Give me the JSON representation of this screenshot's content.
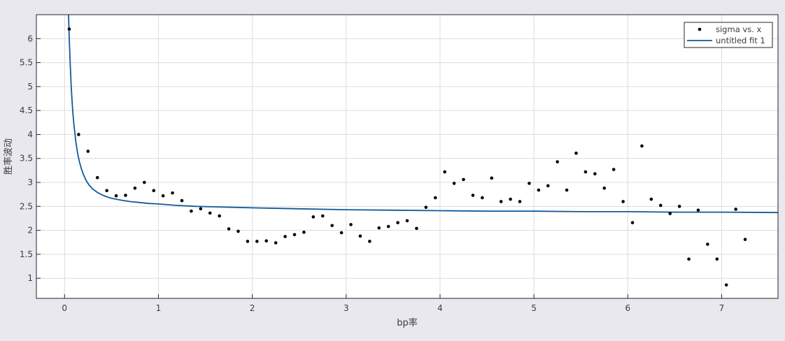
{
  "chart_data": {
    "type": "scatter",
    "xlabel": "bp率",
    "ylabel": "胜率波动",
    "xlim": [
      -0.3,
      7.6
    ],
    "ylim": [
      0.58,
      6.5
    ],
    "xticks": [
      0,
      1,
      2,
      3,
      4,
      5,
      6,
      7
    ],
    "yticks": [
      1,
      1.5,
      2,
      2.5,
      3,
      3.5,
      4,
      4.5,
      5,
      5.5,
      6
    ],
    "grid": true,
    "legend_position": "top-right",
    "series": [
      {
        "name": "sigma vs. x",
        "kind": "points",
        "color": "#000000",
        "x": [
          0.05,
          0.15,
          0.25,
          0.35,
          0.45,
          0.55,
          0.65,
          0.75,
          0.85,
          0.95,
          1.05,
          1.15,
          1.25,
          1.35,
          1.45,
          1.55,
          1.65,
          1.75,
          1.85,
          1.95,
          2.05,
          2.15,
          2.25,
          2.35,
          2.45,
          2.55,
          2.65,
          2.75,
          2.85,
          2.95,
          3.05,
          3.15,
          3.25,
          3.35,
          3.45,
          3.55,
          3.65,
          3.75,
          3.85,
          3.95,
          4.05,
          4.15,
          4.25,
          4.35,
          4.45,
          4.55,
          4.65,
          4.75,
          4.85,
          4.95,
          5.05,
          5.15,
          5.25,
          5.35,
          5.45,
          5.55,
          5.65,
          5.75,
          5.85,
          5.95,
          6.05,
          6.15,
          6.25,
          6.35,
          6.45,
          6.55,
          6.65,
          6.75,
          6.85,
          6.95,
          7.05,
          7.15,
          7.25
        ],
        "y": [
          6.2,
          4.0,
          3.65,
          3.1,
          2.83,
          2.72,
          2.73,
          2.88,
          3.0,
          2.83,
          2.72,
          2.78,
          2.62,
          2.4,
          2.45,
          2.36,
          2.3,
          2.03,
          1.98,
          1.77,
          1.77,
          1.78,
          1.74,
          1.87,
          1.91,
          1.96,
          2.28,
          2.3,
          2.1,
          1.95,
          2.12,
          1.88,
          1.77,
          2.05,
          2.08,
          2.16,
          2.2,
          2.04,
          2.48,
          2.68,
          3.22,
          2.98,
          3.06,
          2.73,
          2.68,
          3.09,
          2.6,
          2.65,
          2.6,
          2.98,
          2.84,
          2.93,
          3.43,
          2.84,
          3.61,
          3.22,
          3.18,
          2.88,
          3.27,
          2.6,
          2.16,
          3.76,
          2.65,
          2.52,
          2.35,
          2.5,
          1.4,
          2.42,
          1.71,
          1.4,
          0.86,
          2.44,
          1.81
        ]
      },
      {
        "name": "untitled fit 1",
        "kind": "line",
        "color": "#0f5a9c",
        "x": [
          0.042,
          0.05,
          0.06,
          0.07,
          0.08,
          0.09,
          0.1,
          0.12,
          0.14,
          0.16,
          0.18,
          0.2,
          0.23,
          0.26,
          0.3,
          0.35,
          0.4,
          0.45,
          0.5,
          0.6,
          0.7,
          0.8,
          0.9,
          1.0,
          1.2,
          1.4,
          1.6,
          1.8,
          2.0,
          2.5,
          3.0,
          3.5,
          4.0,
          4.5,
          5.0,
          5.5,
          6.0,
          6.5,
          7.0,
          7.6
        ],
        "y": [
          6.5,
          6.0,
          5.5,
          5.05,
          4.7,
          4.42,
          4.2,
          3.85,
          3.6,
          3.42,
          3.28,
          3.17,
          3.04,
          2.95,
          2.86,
          2.79,
          2.74,
          2.7,
          2.67,
          2.63,
          2.6,
          2.58,
          2.56,
          2.55,
          2.52,
          2.5,
          2.49,
          2.48,
          2.47,
          2.45,
          2.43,
          2.42,
          2.41,
          2.4,
          2.4,
          2.39,
          2.39,
          2.38,
          2.38,
          2.37
        ]
      }
    ]
  }
}
